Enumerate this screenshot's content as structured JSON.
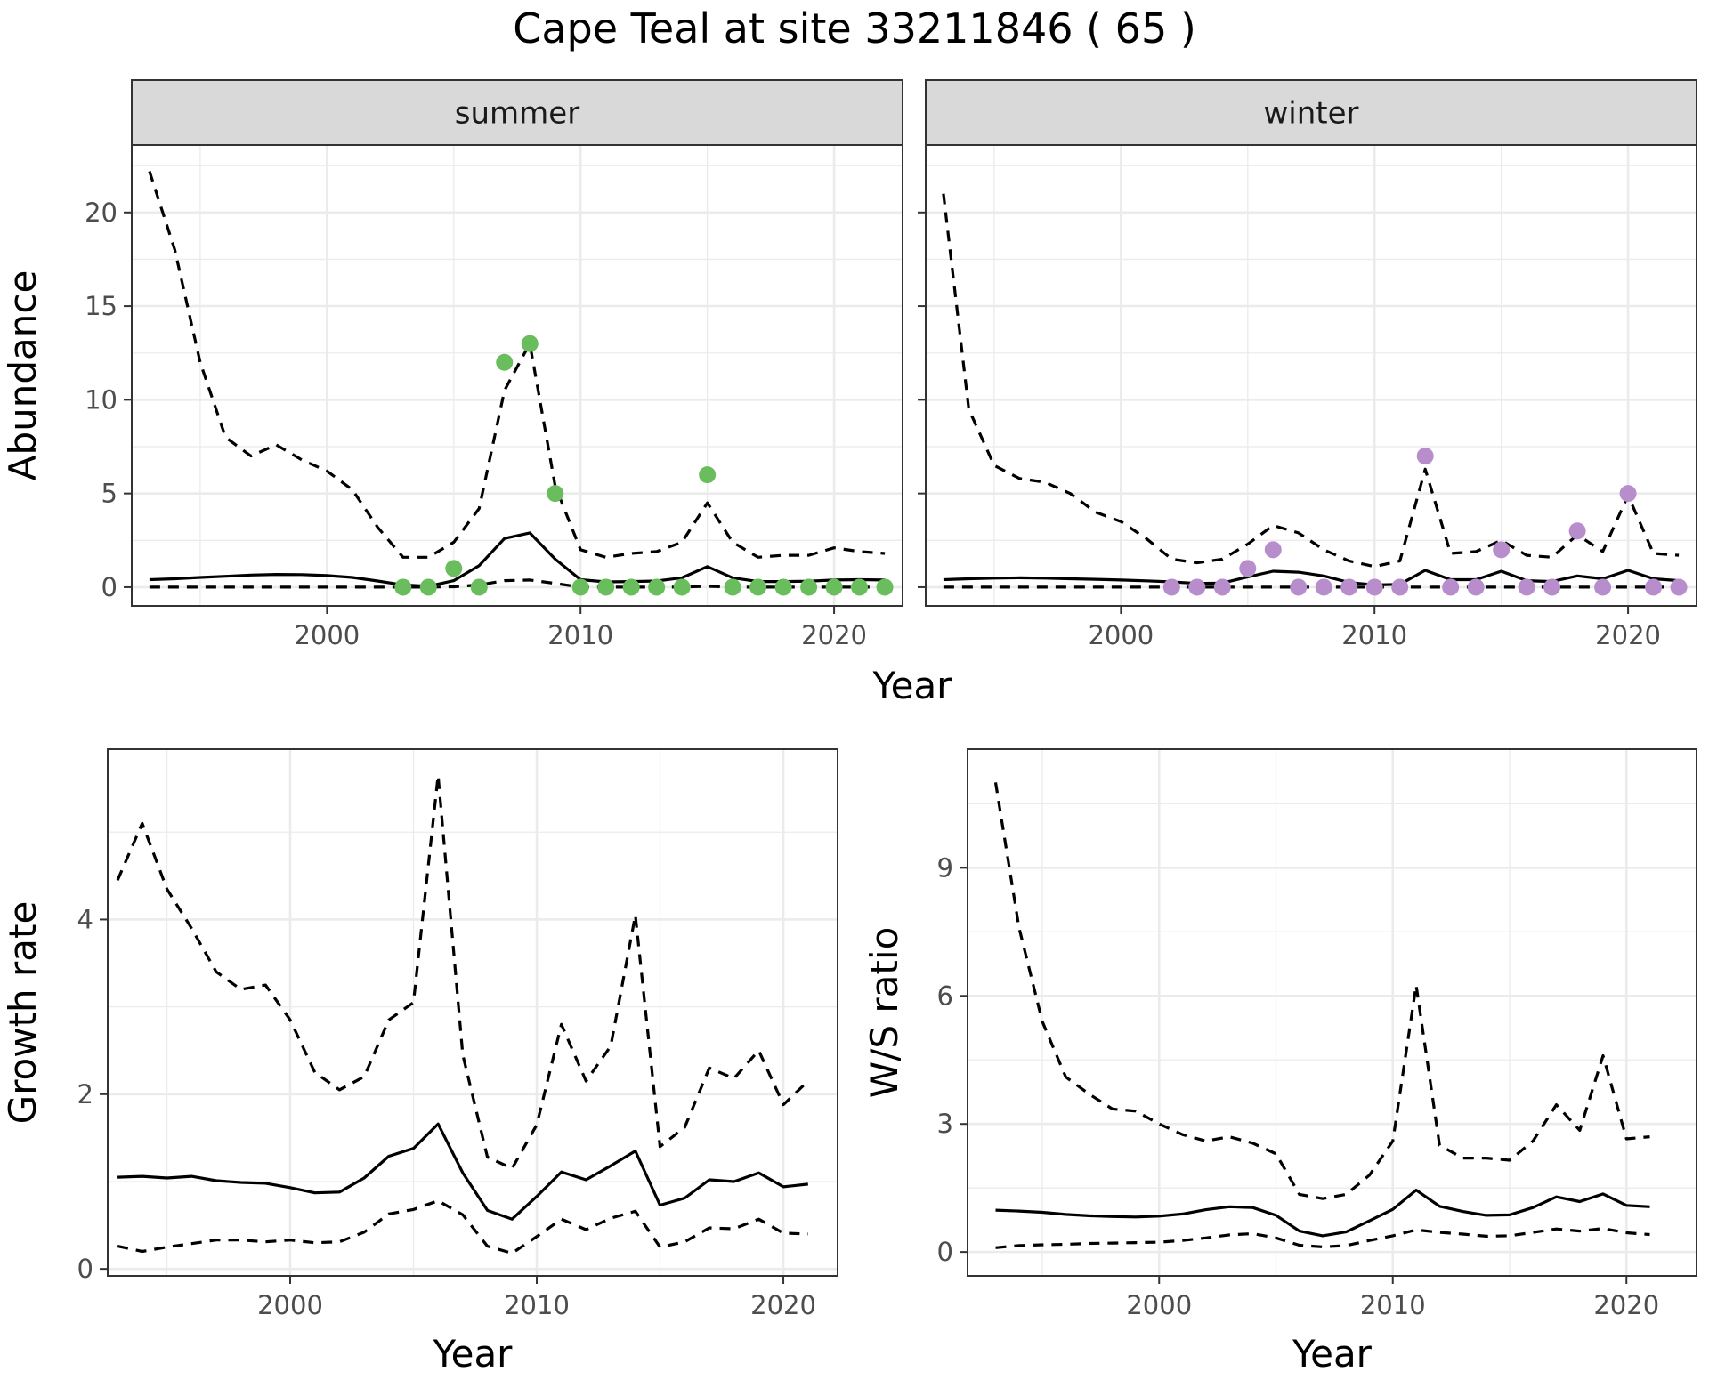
{
  "title": "Cape Teal at site 33211846 ( 65 )",
  "colors": {
    "summer_points": "#6abd5c",
    "winter_points": "#b88dcc",
    "lines": "#000000"
  },
  "shared_x_label": "Year",
  "chart_data": [
    {
      "type": "line",
      "facet": "summer",
      "xlabel": "",
      "ylabel": "Abundance",
      "xlim": [
        1992.3,
        2022.7
      ],
      "ylim": [
        -1,
        23.6
      ],
      "xticks": [
        2000,
        2010,
        2020
      ],
      "yticks": [
        0,
        5,
        10,
        15,
        20
      ],
      "grid": true,
      "series": [
        {
          "role": "mean",
          "style": "solid",
          "x": [
            1993,
            1994,
            1995,
            1996,
            1997,
            1998,
            1999,
            2000,
            2001,
            2002,
            2003,
            2004,
            2005,
            2006,
            2007,
            2008,
            2009,
            2010,
            2011,
            2012,
            2013,
            2014,
            2015,
            2016,
            2017,
            2018,
            2019,
            2020,
            2021,
            2022
          ],
          "y": [
            0.4,
            0.45,
            0.52,
            0.58,
            0.65,
            0.68,
            0.67,
            0.62,
            0.52,
            0.33,
            0.12,
            0.05,
            0.35,
            1.15,
            2.6,
            2.9,
            1.5,
            0.4,
            0.28,
            0.3,
            0.33,
            0.5,
            1.1,
            0.5,
            0.3,
            0.3,
            0.32,
            0.38,
            0.4,
            0.38
          ]
        },
        {
          "role": "upper",
          "style": "dashed",
          "x": [
            1993,
            1994,
            1995,
            1996,
            1997,
            1998,
            1999,
            2000,
            2001,
            2002,
            2003,
            2004,
            2005,
            2006,
            2007,
            2008,
            2009,
            2010,
            2011,
            2012,
            2013,
            2014,
            2015,
            2016,
            2017,
            2018,
            2019,
            2020,
            2021,
            2022
          ],
          "y": [
            22.2,
            18,
            12,
            8,
            7,
            7.6,
            6.8,
            6.2,
            5.2,
            3.2,
            1.6,
            1.6,
            2.4,
            4.2,
            10.5,
            13,
            5.4,
            2,
            1.6,
            1.8,
            1.9,
            2.4,
            4.5,
            2.4,
            1.6,
            1.7,
            1.7,
            2.1,
            1.9,
            1.8
          ]
        },
        {
          "role": "lower",
          "style": "dashed",
          "x": [
            1993,
            1994,
            1995,
            1996,
            1997,
            1998,
            1999,
            2000,
            2001,
            2002,
            2003,
            2004,
            2005,
            2006,
            2007,
            2008,
            2009,
            2010,
            2011,
            2012,
            2013,
            2014,
            2015,
            2016,
            2017,
            2018,
            2019,
            2020,
            2021,
            2022
          ],
          "y": [
            0,
            0,
            0,
            0,
            0,
            0,
            0,
            0,
            0,
            0,
            0,
            0,
            0.02,
            0.12,
            0.35,
            0.38,
            0.2,
            0,
            0,
            0,
            0,
            0,
            0.05,
            0,
            0,
            0,
            0,
            0,
            0,
            0
          ]
        },
        {
          "role": "observed",
          "style": "points",
          "x": [
            2003,
            2004,
            2005,
            2006,
            2007,
            2008,
            2009,
            2010,
            2011,
            2012,
            2013,
            2014,
            2015,
            2016,
            2017,
            2018,
            2019,
            2020,
            2021,
            2022
          ],
          "y": [
            0,
            0,
            1,
            0,
            12,
            13,
            5,
            0,
            0,
            0,
            0,
            0,
            6,
            0,
            0,
            0,
            0,
            0,
            0,
            0
          ]
        }
      ]
    },
    {
      "type": "line",
      "facet": "winter",
      "xlabel": "",
      "ylabel": "",
      "xlim": [
        1992.3,
        2022.7
      ],
      "ylim": [
        -1,
        23.6
      ],
      "xticks": [
        2000,
        2010,
        2020
      ],
      "yticks": [
        0,
        5,
        10,
        15,
        20
      ],
      "grid": true,
      "series": [
        {
          "role": "mean",
          "style": "solid",
          "x": [
            1993,
            1994,
            1995,
            1996,
            1997,
            1998,
            1999,
            2000,
            2001,
            2002,
            2003,
            2004,
            2005,
            2006,
            2007,
            2008,
            2009,
            2010,
            2011,
            2012,
            2013,
            2014,
            2015,
            2016,
            2017,
            2018,
            2019,
            2020,
            2021,
            2022
          ],
          "y": [
            0.4,
            0.45,
            0.48,
            0.5,
            0.48,
            0.45,
            0.42,
            0.38,
            0.34,
            0.28,
            0.2,
            0.22,
            0.55,
            0.85,
            0.8,
            0.6,
            0.25,
            0.12,
            0.15,
            0.9,
            0.4,
            0.4,
            0.85,
            0.35,
            0.3,
            0.6,
            0.45,
            0.9,
            0.45,
            0.35
          ]
        },
        {
          "role": "upper",
          "style": "dashed",
          "x": [
            1993,
            1994,
            1995,
            1996,
            1997,
            1998,
            1999,
            2000,
            2001,
            2002,
            2003,
            2004,
            2005,
            2006,
            2007,
            2008,
            2009,
            2010,
            2011,
            2012,
            2013,
            2014,
            2015,
            2016,
            2017,
            2018,
            2019,
            2020,
            2021,
            2022
          ],
          "y": [
            21,
            9.5,
            6.5,
            5.8,
            5.6,
            5,
            4,
            3.5,
            2.6,
            1.5,
            1.3,
            1.5,
            2.3,
            3.3,
            2.9,
            2,
            1.4,
            1.1,
            1.4,
            6.3,
            1.8,
            1.9,
            2.5,
            1.7,
            1.6,
            2.8,
            1.9,
            4.9,
            1.8,
            1.7
          ]
        },
        {
          "role": "lower",
          "style": "dashed",
          "x": [
            1993,
            1994,
            1995,
            1996,
            1997,
            1998,
            1999,
            2000,
            2001,
            2002,
            2003,
            2004,
            2005,
            2006,
            2007,
            2008,
            2009,
            2010,
            2011,
            2012,
            2013,
            2014,
            2015,
            2016,
            2017,
            2018,
            2019,
            2020,
            2021,
            2022
          ],
          "y": [
            0,
            0,
            0,
            0,
            0,
            0,
            0,
            0,
            0,
            0,
            0,
            0,
            0,
            0,
            0,
            0,
            0,
            0,
            0,
            0,
            0,
            0,
            0,
            0,
            0,
            0,
            0,
            0,
            0,
            0
          ]
        },
        {
          "role": "observed",
          "style": "points",
          "x": [
            2002,
            2003,
            2004,
            2005,
            2006,
            2007,
            2008,
            2009,
            2010,
            2011,
            2012,
            2013,
            2014,
            2015,
            2016,
            2017,
            2018,
            2019,
            2020,
            2021,
            2022
          ],
          "y": [
            0,
            0,
            0,
            1,
            2,
            0,
            0,
            0,
            0,
            0,
            7,
            0,
            0,
            2,
            0,
            0,
            3,
            0,
            5,
            0,
            0
          ]
        }
      ]
    },
    {
      "type": "line",
      "facet": "",
      "xlabel": "Year",
      "ylabel": "Growth rate",
      "xlim": [
        1992.6,
        2022.2
      ],
      "ylim": [
        -0.08,
        5.95
      ],
      "xticks": [
        2000,
        2010,
        2020
      ],
      "yticks": [
        0,
        2,
        4
      ],
      "grid": true,
      "series": [
        {
          "role": "mean",
          "style": "solid",
          "x": [
            1993,
            1994,
            1995,
            1996,
            1997,
            1998,
            1999,
            2000,
            2001,
            2002,
            2003,
            2004,
            2005,
            2006,
            2007,
            2008,
            2009,
            2010,
            2011,
            2012,
            2013,
            2014,
            2015,
            2016,
            2017,
            2018,
            2019,
            2020,
            2021
          ],
          "y": [
            1.05,
            1.06,
            1.04,
            1.06,
            1.01,
            0.99,
            0.98,
            0.93,
            0.87,
            0.88,
            1.04,
            1.29,
            1.38,
            1.66,
            1.1,
            0.67,
            0.57,
            0.83,
            1.11,
            1.02,
            1.18,
            1.35,
            0.73,
            0.81,
            1.02,
            1.0,
            1.1,
            0.94,
            0.97
          ]
        },
        {
          "role": "upper",
          "style": "dashed",
          "x": [
            1993,
            1994,
            1995,
            1996,
            1997,
            1998,
            1999,
            2000,
            2001,
            2002,
            2003,
            2004,
            2005,
            2006,
            2007,
            2008,
            2009,
            2010,
            2011,
            2012,
            2013,
            2014,
            2015,
            2016,
            2017,
            2018,
            2019,
            2020,
            2021
          ],
          "y": [
            4.45,
            5.1,
            4.35,
            3.9,
            3.4,
            3.2,
            3.25,
            2.85,
            2.25,
            2.05,
            2.2,
            2.85,
            3.05,
            5.65,
            2.45,
            1.28,
            1.15,
            1.65,
            2.8,
            2.15,
            2.55,
            4.05,
            1.4,
            1.62,
            2.3,
            2.18,
            2.5,
            1.88,
            2.15
          ]
        },
        {
          "role": "lower",
          "style": "dashed",
          "x": [
            1993,
            1994,
            1995,
            1996,
            1997,
            1998,
            1999,
            2000,
            2001,
            2002,
            2003,
            2004,
            2005,
            2006,
            2007,
            2008,
            2009,
            2010,
            2011,
            2012,
            2013,
            2014,
            2015,
            2016,
            2017,
            2018,
            2019,
            2020,
            2021
          ],
          "y": [
            0.26,
            0.2,
            0.25,
            0.29,
            0.33,
            0.33,
            0.31,
            0.33,
            0.3,
            0.31,
            0.42,
            0.63,
            0.68,
            0.78,
            0.62,
            0.26,
            0.18,
            0.37,
            0.57,
            0.45,
            0.58,
            0.66,
            0.25,
            0.31,
            0.47,
            0.46,
            0.57,
            0.41,
            0.4
          ]
        }
      ]
    },
    {
      "type": "line",
      "facet": "",
      "xlabel": "Year",
      "ylabel": "W/S ratio",
      "xlim": [
        1991.8,
        2023.0
      ],
      "ylim": [
        -0.56,
        11.78
      ],
      "xticks": [
        2000,
        2010,
        2020
      ],
      "yticks": [
        0,
        3,
        6,
        9
      ],
      "grid": true,
      "series": [
        {
          "role": "mean",
          "style": "solid",
          "x": [
            1993,
            1994,
            1995,
            1996,
            1997,
            1998,
            1999,
            2000,
            2001,
            2002,
            2003,
            2004,
            2005,
            2006,
            2007,
            2008,
            2009,
            2010,
            2011,
            2012,
            2013,
            2014,
            2015,
            2016,
            2017,
            2018,
            2019,
            2020,
            2021
          ],
          "y": [
            0.98,
            0.96,
            0.93,
            0.88,
            0.85,
            0.83,
            0.82,
            0.84,
            0.89,
            0.99,
            1.06,
            1.04,
            0.86,
            0.49,
            0.38,
            0.47,
            0.73,
            1.0,
            1.45,
            1.07,
            0.95,
            0.86,
            0.87,
            1.04,
            1.29,
            1.18,
            1.36,
            1.09,
            1.06
          ]
        },
        {
          "role": "upper",
          "style": "dashed",
          "x": [
            1993,
            1994,
            1995,
            1996,
            1997,
            1998,
            1999,
            2000,
            2001,
            2002,
            2003,
            2004,
            2005,
            2006,
            2007,
            2008,
            2009,
            2010,
            2011,
            2012,
            2013,
            2014,
            2015,
            2016,
            2017,
            2018,
            2019,
            2020,
            2021
          ],
          "y": [
            11.0,
            7.6,
            5.4,
            4.1,
            3.7,
            3.35,
            3.3,
            3.0,
            2.75,
            2.6,
            2.7,
            2.55,
            2.3,
            1.35,
            1.25,
            1.35,
            1.8,
            2.6,
            6.25,
            2.5,
            2.2,
            2.2,
            2.15,
            2.6,
            3.45,
            2.85,
            4.6,
            2.65,
            2.7
          ]
        },
        {
          "role": "lower",
          "style": "dashed",
          "x": [
            1993,
            1994,
            1995,
            1996,
            1997,
            1998,
            1999,
            2000,
            2001,
            2002,
            2003,
            2004,
            2005,
            2006,
            2007,
            2008,
            2009,
            2010,
            2011,
            2012,
            2013,
            2014,
            2015,
            2016,
            2017,
            2018,
            2019,
            2020,
            2021
          ],
          "y": [
            0.1,
            0.15,
            0.17,
            0.18,
            0.2,
            0.21,
            0.22,
            0.23,
            0.27,
            0.33,
            0.4,
            0.43,
            0.33,
            0.16,
            0.12,
            0.15,
            0.27,
            0.38,
            0.52,
            0.46,
            0.42,
            0.37,
            0.38,
            0.46,
            0.54,
            0.49,
            0.55,
            0.45,
            0.41
          ]
        }
      ]
    }
  ]
}
